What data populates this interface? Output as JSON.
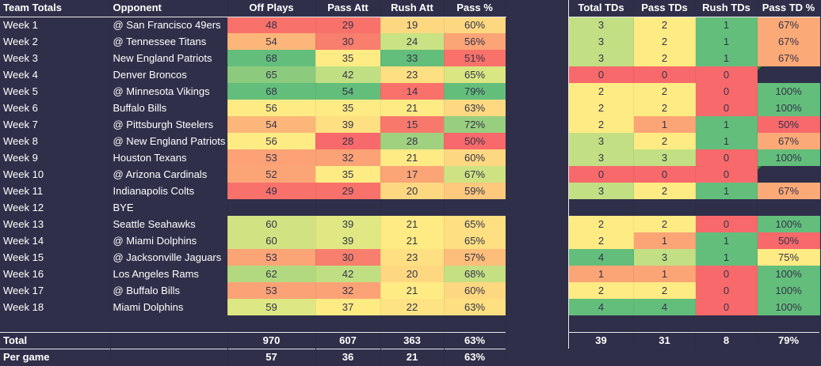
{
  "left_headers": [
    "Team Totals",
    "Opponent",
    "Off Plays",
    "Pass Att",
    "Rush Att",
    "Pass %"
  ],
  "right_headers": [
    "Total TDs",
    "Pass TDs",
    "Rush TDs",
    "Pass TD %"
  ],
  "rows": [
    {
      "week": "Week 1",
      "opp": "@ San Francisco 49ers",
      "off": "48",
      "pass": "29",
      "rush": "19",
      "pct": "60%",
      "ttd": "3",
      "ptd": "2",
      "rtd": "1",
      "tdpct": "67%"
    },
    {
      "week": "Week 2",
      "opp": "@ Tennessee Titans",
      "off": "54",
      "pass": "30",
      "rush": "24",
      "pct": "56%",
      "ttd": "3",
      "ptd": "2",
      "rtd": "1",
      "tdpct": "67%"
    },
    {
      "week": "Week 3",
      "opp": "New England Patriots",
      "off": "68",
      "pass": "35",
      "rush": "33",
      "pct": "51%",
      "ttd": "3",
      "ptd": "2",
      "rtd": "1",
      "tdpct": "67%"
    },
    {
      "week": "Week 4",
      "opp": "Denver Broncos",
      "off": "65",
      "pass": "42",
      "rush": "23",
      "pct": "65%",
      "ttd": "0",
      "ptd": "0",
      "rtd": "0",
      "tdpct": ""
    },
    {
      "week": "Week 5",
      "opp": "@ Minnesota Vikings",
      "off": "68",
      "pass": "54",
      "rush": "14",
      "pct": "79%",
      "ttd": "2",
      "ptd": "2",
      "rtd": "0",
      "tdpct": "100%"
    },
    {
      "week": "Week 6",
      "opp": "Buffalo Bills",
      "off": "56",
      "pass": "35",
      "rush": "21",
      "pct": "63%",
      "ttd": "2",
      "ptd": "2",
      "rtd": "0",
      "tdpct": "100%"
    },
    {
      "week": "Week 7",
      "opp": "@ Pittsburgh Steelers",
      "off": "54",
      "pass": "39",
      "rush": "15",
      "pct": "72%",
      "ttd": "2",
      "ptd": "1",
      "rtd": "1",
      "tdpct": "50%"
    },
    {
      "week": "Week 8",
      "opp": "@ New England Patriots",
      "off": "56",
      "pass": "28",
      "rush": "28",
      "pct": "50%",
      "ttd": "3",
      "ptd": "2",
      "rtd": "1",
      "tdpct": "67%"
    },
    {
      "week": "Week 9",
      "opp": "Houston Texans",
      "off": "53",
      "pass": "32",
      "rush": "21",
      "pct": "60%",
      "ttd": "3",
      "ptd": "3",
      "rtd": "0",
      "tdpct": "100%"
    },
    {
      "week": "Week 10",
      "opp": "@ Arizona Cardinals",
      "off": "52",
      "pass": "35",
      "rush": "17",
      "pct": "67%",
      "ttd": "0",
      "ptd": "0",
      "rtd": "0",
      "tdpct": ""
    },
    {
      "week": "Week 11",
      "opp": "Indianapolis Colts",
      "off": "49",
      "pass": "29",
      "rush": "20",
      "pct": "59%",
      "ttd": "3",
      "ptd": "2",
      "rtd": "1",
      "tdpct": "67%"
    },
    {
      "week": "Week 12",
      "opp": "BYE",
      "off": "",
      "pass": "",
      "rush": "",
      "pct": "",
      "ttd": "",
      "ptd": "",
      "rtd": "",
      "tdpct": ""
    },
    {
      "week": "Week 13",
      "opp": "Seattle Seahawks",
      "off": "60",
      "pass": "39",
      "rush": "21",
      "pct": "65%",
      "ttd": "2",
      "ptd": "2",
      "rtd": "0",
      "tdpct": "100%"
    },
    {
      "week": "Week 14",
      "opp": "@ Miami Dolphins",
      "off": "60",
      "pass": "39",
      "rush": "21",
      "pct": "65%",
      "ttd": "2",
      "ptd": "1",
      "rtd": "1",
      "tdpct": "50%"
    },
    {
      "week": "Week 15",
      "opp": "@ Jacksonville Jaguars",
      "off": "53",
      "pass": "30",
      "rush": "23",
      "pct": "57%",
      "ttd": "4",
      "ptd": "3",
      "rtd": "1",
      "tdpct": "75%"
    },
    {
      "week": "Week 16",
      "opp": "Los Angeles Rams",
      "off": "62",
      "pass": "42",
      "rush": "20",
      "pct": "68%",
      "ttd": "1",
      "ptd": "1",
      "rtd": "0",
      "tdpct": "100%"
    },
    {
      "week": "Week 17",
      "opp": "@ Buffalo Bills",
      "off": "53",
      "pass": "32",
      "rush": "21",
      "pct": "60%",
      "ttd": "2",
      "ptd": "2",
      "rtd": "0",
      "tdpct": "100%"
    },
    {
      "week": "Week 18",
      "opp": "Miami Dolphins",
      "off": "59",
      "pass": "37",
      "rush": "22",
      "pct": "63%",
      "ttd": "4",
      "ptd": "4",
      "rtd": "0",
      "tdpct": "100%"
    }
  ],
  "total": {
    "label": "Total",
    "off": "970",
    "pass": "607",
    "rush": "363",
    "pct": "63%",
    "ttd": "39",
    "ptd": "31",
    "rtd": "8",
    "tdpct": "79%"
  },
  "per_game": {
    "label": "Per game",
    "off": "57",
    "pass": "36",
    "rush": "21",
    "pct": "63%"
  },
  "colors": {
    "left": [
      [
        "#f8716a",
        "#f8716a",
        "#fed880",
        "#fed880"
      ],
      [
        "#fdb679",
        "#f87e6d",
        "#c9e384",
        "#fba476"
      ],
      [
        "#63be7b",
        "#ffeb84",
        "#63be7b",
        "#f8716a"
      ],
      [
        "#8ccb7e",
        "#c0df82",
        "#fedf81",
        "#dae682"
      ],
      [
        "#63be7b",
        "#63be7b",
        "#f8716a",
        "#63be7b"
      ],
      [
        "#ffeb84",
        "#ffeb84",
        "#ffeb84",
        "#fed981"
      ],
      [
        "#fdb679",
        "#fedf81",
        "#f9786c",
        "#98ce7f"
      ],
      [
        "#ffeb84",
        "#f8696b",
        "#a0d17f",
        "#f8696b"
      ],
      [
        "#fca276",
        "#fba276",
        "#ffeb84",
        "#fed880"
      ],
      [
        "#fba476",
        "#ffeb84",
        "#fba476",
        "#cfe283"
      ],
      [
        "#f8716a",
        "#f8716a",
        "#fed880",
        "#fec87d"
      ],
      null,
      [
        "#d1e283",
        "#e0e883",
        "#ffeb84",
        "#fedf81"
      ],
      [
        "#d1e283",
        "#e0e883",
        "#ffeb84",
        "#fedf81"
      ],
      [
        "#fba476",
        "#f87e6d",
        "#fedf81",
        "#fdbd7b"
      ],
      [
        "#b3d980",
        "#c0df82",
        "#fed880",
        "#c5e082"
      ],
      [
        "#fba276",
        "#fba276",
        "#ffeb84",
        "#fed880"
      ],
      [
        "#dde783",
        "#ffeb84",
        "#fee384",
        "#fedf81"
      ]
    ],
    "right": [
      [
        "#c2e083",
        "#ffeb84",
        "#63be7b",
        "#fbaa77"
      ],
      [
        "#c2e083",
        "#ffeb84",
        "#63be7b",
        "#fbaa77"
      ],
      [
        "#c2e083",
        "#ffeb84",
        "#63be7b",
        "#fbaa77"
      ],
      [
        "#f8696b",
        "#f8696b",
        "#f8696b",
        null
      ],
      [
        "#ffeb84",
        "#ffeb84",
        "#f8696b",
        "#63be7b"
      ],
      [
        "#ffeb84",
        "#ffeb84",
        "#f8696b",
        "#63be7b"
      ],
      [
        "#ffeb84",
        "#fba576",
        "#63be7b",
        "#f8696b"
      ],
      [
        "#c2e083",
        "#ffeb84",
        "#63be7b",
        "#fbaa77"
      ],
      [
        "#c2e083",
        "#c2e083",
        "#f8696b",
        "#63be7b"
      ],
      [
        "#f8696b",
        "#f8696b",
        "#f8696b",
        null
      ],
      [
        "#c2e083",
        "#ffeb84",
        "#63be7b",
        "#fbaa77"
      ],
      null,
      [
        "#ffeb84",
        "#ffeb84",
        "#f8696b",
        "#63be7b"
      ],
      [
        "#ffeb84",
        "#fba576",
        "#63be7b",
        "#f8696b"
      ],
      [
        "#63be7b",
        "#c2e083",
        "#63be7b",
        "#ffeb84"
      ],
      [
        "#fba576",
        "#fba576",
        "#f8696b",
        "#63be7b"
      ],
      [
        "#ffeb84",
        "#ffeb84",
        "#f8696b",
        "#63be7b"
      ],
      [
        "#63be7b",
        "#63be7b",
        "#f8696b",
        "#63be7b"
      ]
    ]
  },
  "flagged_rows": [
    3,
    9
  ]
}
